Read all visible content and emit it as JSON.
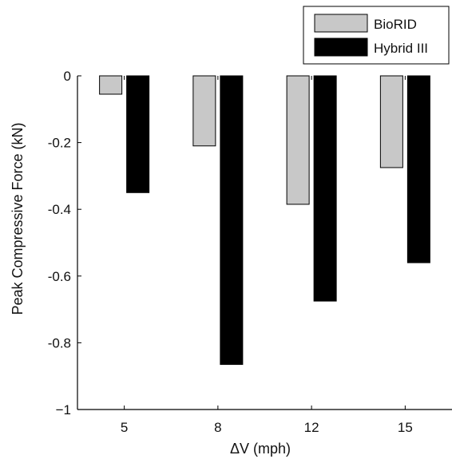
{
  "chart_data": {
    "type": "bar",
    "title": "",
    "xlabel": "ΔV (mph)",
    "ylabel": "Peak Compressive Force (kN)",
    "categories": [
      "5",
      "8",
      "12",
      "15"
    ],
    "ylim": [
      -1,
      0
    ],
    "yticks": [
      "0",
      "-0.2",
      "-0.4",
      "-0.6",
      "-0.8",
      "−1"
    ],
    "ytick_values": [
      0,
      -0.2,
      -0.4,
      -0.6,
      -0.8,
      -1
    ],
    "grid": false,
    "legend_position": "top-right",
    "series": [
      {
        "name": "BioRID",
        "color": "#c8c8c8",
        "values": [
          -0.055,
          -0.21,
          -0.385,
          -0.275
        ]
      },
      {
        "name": "Hybrid III",
        "color": "#000000",
        "values": [
          -0.35,
          -0.865,
          -0.675,
          -0.56
        ]
      }
    ]
  }
}
